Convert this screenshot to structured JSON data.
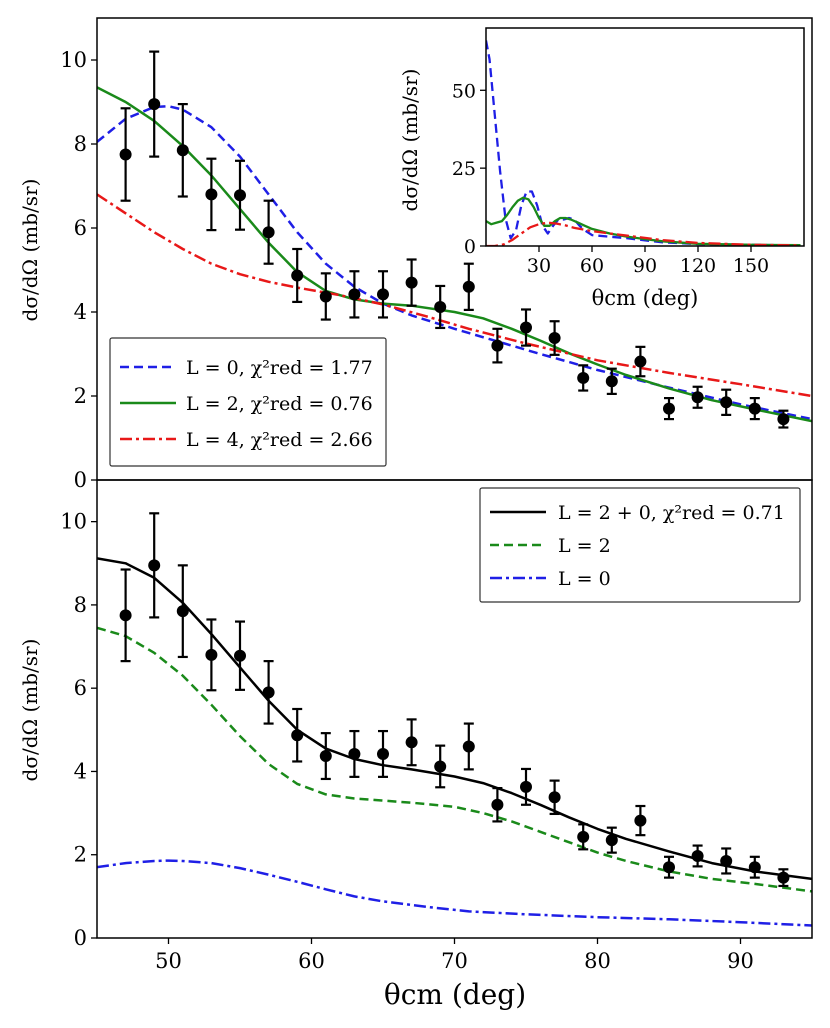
{
  "chart_data": [
    {
      "id": "top",
      "type": "line",
      "title": "",
      "xlim": [
        45,
        95
      ],
      "ylim": [
        0,
        11
      ],
      "xticks": [],
      "yticks": [
        0,
        2,
        4,
        6,
        8,
        10
      ],
      "ylabel": "dσ/dΩ (mb/sr)",
      "data_points": {
        "x": [
          47,
          49,
          51,
          53,
          55,
          57,
          59,
          61,
          63,
          65,
          67,
          69,
          71,
          73,
          75,
          77,
          79,
          81,
          83,
          85,
          87,
          89,
          91,
          93
        ],
        "y": [
          7.75,
          8.95,
          7.85,
          6.8,
          6.78,
          5.9,
          4.87,
          4.37,
          4.42,
          4.42,
          4.7,
          4.12,
          4.6,
          3.2,
          3.63,
          3.38,
          2.43,
          2.35,
          2.82,
          1.7,
          1.97,
          1.85,
          1.7,
          1.45
        ],
        "err": [
          1.1,
          1.25,
          1.1,
          0.85,
          0.82,
          0.75,
          0.63,
          0.55,
          0.55,
          0.55,
          0.55,
          0.5,
          0.55,
          0.4,
          0.43,
          0.4,
          0.3,
          0.3,
          0.35,
          0.25,
          0.25,
          0.3,
          0.25,
          0.2
        ]
      },
      "series": [
        {
          "name": "L = 0",
          "chi2": "1.77",
          "color": "#1f1fe6",
          "dash": "dashed",
          "x": [
            45,
            47,
            49,
            50,
            51,
            53,
            55,
            57,
            59,
            61,
            63,
            65,
            67,
            70,
            73,
            76,
            80,
            85,
            90,
            95
          ],
          "y": [
            8.05,
            8.6,
            8.88,
            8.9,
            8.82,
            8.4,
            7.7,
            6.8,
            5.9,
            5.15,
            4.6,
            4.2,
            3.92,
            3.6,
            3.3,
            3.0,
            2.62,
            2.2,
            1.8,
            1.45
          ]
        },
        {
          "name": "L = 2",
          "chi2": "0.76",
          "color": "#1a8a1a",
          "dash": "solid",
          "x": [
            45,
            47,
            49,
            51,
            53,
            55,
            57,
            59,
            61,
            63,
            65,
            67,
            70,
            72,
            74,
            76,
            78,
            80,
            82,
            85,
            88,
            91,
            95
          ],
          "y": [
            9.35,
            9.0,
            8.55,
            7.95,
            7.25,
            6.45,
            5.65,
            4.95,
            4.5,
            4.3,
            4.2,
            4.15,
            4.0,
            3.85,
            3.6,
            3.32,
            3.02,
            2.75,
            2.5,
            2.18,
            1.9,
            1.68,
            1.4
          ]
        },
        {
          "name": "L = 4",
          "chi2": "2.66",
          "color": "#e81818",
          "dash": "dashdot",
          "x": [
            45,
            47,
            49,
            51,
            53,
            55,
            57,
            59,
            62,
            65,
            68,
            71,
            75,
            80,
            85,
            90,
            95
          ],
          "y": [
            6.8,
            6.35,
            5.9,
            5.5,
            5.15,
            4.9,
            4.72,
            4.58,
            4.4,
            4.18,
            3.9,
            3.6,
            3.25,
            2.85,
            2.55,
            2.28,
            2.0
          ]
        }
      ],
      "legend": {
        "position": "lower-left",
        "entries": [
          "L = 0, χ²red = 1.77",
          "L = 2, χ²red = 0.76",
          "L = 4, χ²red = 2.66"
        ]
      }
    },
    {
      "id": "inset",
      "type": "line",
      "xlim": [
        0,
        180
      ],
      "ylim": [
        0,
        70
      ],
      "xticks": [
        30,
        60,
        90,
        120,
        150
      ],
      "yticks": [
        0,
        25,
        50
      ],
      "xlabel": "θcm (deg)",
      "ylabel": "dσ/dΩ (mb/sr)",
      "series": [
        {
          "name": "L = 0",
          "color": "#1f1fe6",
          "dash": "dashed",
          "x": [
            0,
            2,
            5,
            8,
            11,
            14,
            17,
            20,
            23,
            26,
            29,
            32,
            35,
            38,
            41,
            44,
            47,
            50,
            53,
            56,
            60,
            70,
            80,
            90,
            100,
            120,
            150,
            178
          ],
          "y": [
            66,
            60,
            42,
            24,
            9,
            2.5,
            5,
            13,
            17.5,
            17.5,
            13,
            6.5,
            4,
            6.5,
            8.5,
            8.5,
            9,
            8.5,
            6.5,
            5,
            3.5,
            3,
            2.5,
            1.8,
            1.2,
            0.6,
            0.4,
            0.2
          ]
        },
        {
          "name": "L = 2",
          "color": "#1a8a1a",
          "dash": "solid",
          "x": [
            0,
            3,
            6,
            9,
            12,
            15,
            18,
            21,
            24,
            27,
            30,
            33,
            36,
            39,
            42,
            45,
            48,
            52,
            56,
            60,
            70,
            80,
            90,
            100,
            120,
            150,
            178
          ],
          "y": [
            8,
            7,
            7.5,
            8,
            10,
            12.5,
            14.5,
            15.5,
            15,
            12.5,
            9,
            6.5,
            6.5,
            8,
            9,
            9,
            8.5,
            7.5,
            6.5,
            5.5,
            4,
            3,
            2.2,
            1.5,
            0.7,
            0.4,
            0.3
          ]
        },
        {
          "name": "L = 4",
          "color": "#e81818",
          "dash": "dashdot",
          "x": [
            0,
            5,
            10,
            15,
            20,
            25,
            30,
            35,
            40,
            45,
            50,
            60,
            70,
            80,
            90,
            100,
            120,
            150,
            178
          ],
          "y": [
            0,
            0,
            0.5,
            2,
            4,
            6,
            7,
            7.5,
            7.2,
            6.6,
            5.8,
            4.8,
            4,
            3.3,
            2.6,
            1.9,
            1,
            0.4,
            0.2
          ]
        }
      ]
    },
    {
      "id": "bottom",
      "type": "line",
      "xlim": [
        45,
        95
      ],
      "ylim": [
        0,
        11
      ],
      "xticks": [
        50,
        60,
        70,
        80,
        90
      ],
      "yticks": [
        0,
        2,
        4,
        6,
        8,
        10
      ],
      "xlabel": "θcm (deg)",
      "ylabel": "dσ/dΩ (mb/sr)",
      "data_points": {
        "x": [
          47,
          49,
          51,
          53,
          55,
          57,
          59,
          61,
          63,
          65,
          67,
          69,
          71,
          73,
          75,
          77,
          79,
          81,
          83,
          85,
          87,
          89,
          91,
          93
        ],
        "y": [
          7.75,
          8.95,
          7.85,
          6.8,
          6.78,
          5.9,
          4.87,
          4.37,
          4.42,
          4.42,
          4.7,
          4.12,
          4.6,
          3.2,
          3.63,
          3.38,
          2.43,
          2.35,
          2.82,
          1.7,
          1.97,
          1.85,
          1.7,
          1.45
        ],
        "err": [
          1.1,
          1.25,
          1.1,
          0.85,
          0.82,
          0.75,
          0.63,
          0.55,
          0.55,
          0.55,
          0.55,
          0.5,
          0.55,
          0.4,
          0.43,
          0.4,
          0.3,
          0.3,
          0.35,
          0.25,
          0.25,
          0.3,
          0.25,
          0.2
        ]
      },
      "series": [
        {
          "name": "L = 2 + 0",
          "chi2": "0.71",
          "color": "#000000",
          "dash": "solid",
          "x": [
            45,
            47,
            49,
            51,
            53,
            55,
            57,
            59,
            61,
            63,
            65,
            67,
            70,
            72,
            74,
            76,
            78,
            80,
            82,
            85,
            88,
            91,
            95
          ],
          "y": [
            9.12,
            9.0,
            8.65,
            8.05,
            7.3,
            6.5,
            5.7,
            5.0,
            4.55,
            4.3,
            4.15,
            4.05,
            3.88,
            3.72,
            3.48,
            3.2,
            2.9,
            2.62,
            2.38,
            2.08,
            1.8,
            1.6,
            1.42
          ]
        },
        {
          "name": "L = 2",
          "color": "#1a8a1a",
          "dash": "dashed",
          "x": [
            45,
            47,
            49,
            51,
            53,
            55,
            57,
            59,
            61,
            63,
            65,
            67,
            70,
            72,
            74,
            76,
            78,
            80,
            82,
            85,
            88,
            91,
            95
          ],
          "y": [
            7.45,
            7.25,
            6.85,
            6.3,
            5.6,
            4.85,
            4.18,
            3.7,
            3.45,
            3.35,
            3.3,
            3.25,
            3.15,
            3.0,
            2.8,
            2.55,
            2.3,
            2.05,
            1.85,
            1.6,
            1.42,
            1.3,
            1.12
          ]
        },
        {
          "name": "L = 0",
          "color": "#1f1fe6",
          "dash": "dashdot",
          "x": [
            45,
            47,
            49,
            50,
            51,
            53,
            55,
            57,
            59,
            61,
            63,
            65,
            68,
            71,
            75,
            80,
            85,
            90,
            95
          ],
          "y": [
            1.7,
            1.8,
            1.85,
            1.86,
            1.85,
            1.8,
            1.68,
            1.52,
            1.35,
            1.17,
            1.0,
            0.88,
            0.75,
            0.64,
            0.57,
            0.5,
            0.45,
            0.38,
            0.3
          ]
        }
      ],
      "legend": {
        "position": "upper-right",
        "entries": [
          "L = 2 + 0, χ²red = 0.71",
          "L = 2",
          "L = 0"
        ]
      }
    }
  ]
}
